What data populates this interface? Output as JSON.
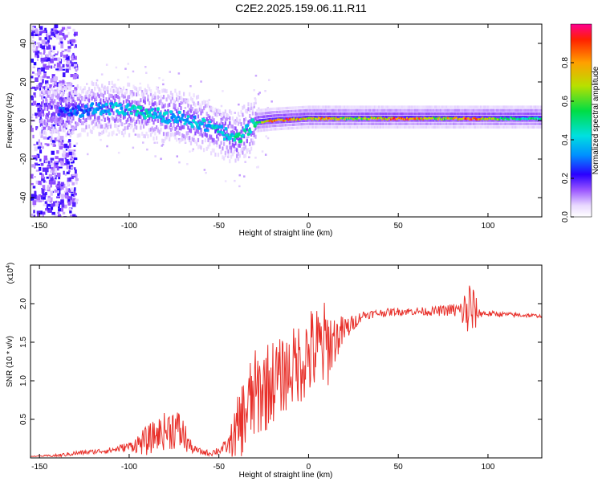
{
  "title": "C2E2.2025.159.06.11.R11",
  "chart_data": [
    {
      "type": "heatmap",
      "name": "spectrogram",
      "xlabel": "Height of straight line (km)",
      "ylabel": "Frequency (Hz)",
      "xlim": [
        -155,
        130
      ],
      "ylim": [
        -50,
        50
      ],
      "xticks": [
        -150,
        -100,
        -50,
        0,
        50,
        100
      ],
      "yticks": [
        -40,
        -20,
        0,
        20,
        40
      ],
      "colorbar": {
        "label": "Normalized spectral amplitude",
        "range": [
          0,
          1
        ],
        "ticks": [
          "0.0",
          "0.2",
          "0.4",
          "0.6",
          "0.8"
        ]
      },
      "ridge": {
        "height_km": [
          -150,
          -130,
          -120,
          -110,
          -100,
          -90,
          -80,
          -70,
          -60,
          -50,
          -45,
          -40,
          -35,
          -30,
          -20,
          -10,
          0,
          10,
          25,
          50,
          70,
          90,
          110,
          130
        ],
        "frequency_hz": [
          5,
          5,
          6,
          6,
          5,
          4,
          2,
          1,
          -2,
          -6,
          -8,
          -10,
          -5,
          -1,
          0,
          0.5,
          1,
          1,
          1,
          1,
          1,
          1,
          1,
          1
        ],
        "amplitude": [
          0.25,
          0.3,
          0.35,
          0.4,
          0.45,
          0.45,
          0.4,
          0.4,
          0.4,
          0.45,
          0.45,
          0.5,
          0.45,
          0.5,
          0.9,
          0.9,
          0.7,
          0.85,
          0.6,
          0.95,
          0.7,
          0.9,
          0.55,
          0.5
        ]
      }
    },
    {
      "type": "line",
      "name": "snr",
      "xlabel": "Height of straight line (km)",
      "ylabel": "SNR (10 * v/v)",
      "yscale_label": "(x10",
      "yscale_exp": "4",
      "xlim": [
        -155,
        130
      ],
      "ylim": [
        0,
        2.5
      ],
      "xticks": [
        -150,
        -100,
        -50,
        0,
        50,
        100
      ],
      "yticks": [
        "0.5",
        "1.0",
        "1.5",
        "2.0"
      ],
      "color": "#e8302a",
      "x": [
        -155,
        -140,
        -130,
        -120,
        -110,
        -100,
        -90,
        -85,
        -80,
        -75,
        -70,
        -65,
        -60,
        -55,
        -50,
        -45,
        -40,
        -35,
        -30,
        -25,
        -20,
        -15,
        -10,
        -5,
        0,
        5,
        10,
        15,
        20,
        25,
        30,
        40,
        50,
        60,
        70,
        80,
        85,
        90,
        95,
        100,
        110,
        120,
        130
      ],
      "y": [
        0.02,
        0.03,
        0.06,
        0.08,
        0.1,
        0.15,
        0.22,
        0.3,
        0.35,
        0.4,
        0.3,
        0.12,
        0.08,
        0.06,
        0.1,
        0.15,
        0.35,
        0.6,
        0.8,
        0.9,
        1.0,
        1.05,
        1.15,
        1.25,
        1.35,
        1.4,
        1.45,
        1.55,
        1.65,
        1.75,
        1.85,
        1.88,
        1.9,
        1.9,
        1.9,
        1.92,
        1.9,
        1.9,
        1.88,
        1.87,
        1.86,
        1.85,
        1.84
      ],
      "noise": [
        0.0,
        0.02,
        0.03,
        0.03,
        0.04,
        0.06,
        0.2,
        0.2,
        0.25,
        0.3,
        0.25,
        0.06,
        0.04,
        0.04,
        0.06,
        0.1,
        0.4,
        0.6,
        0.6,
        0.6,
        0.55,
        0.5,
        0.5,
        0.55,
        0.6,
        0.6,
        0.6,
        0.3,
        0.2,
        0.1,
        0.06,
        0.05,
        0.05,
        0.05,
        0.06,
        0.08,
        0.15,
        0.5,
        0.06,
        0.04,
        0.03,
        0.03,
        0.02
      ]
    }
  ]
}
